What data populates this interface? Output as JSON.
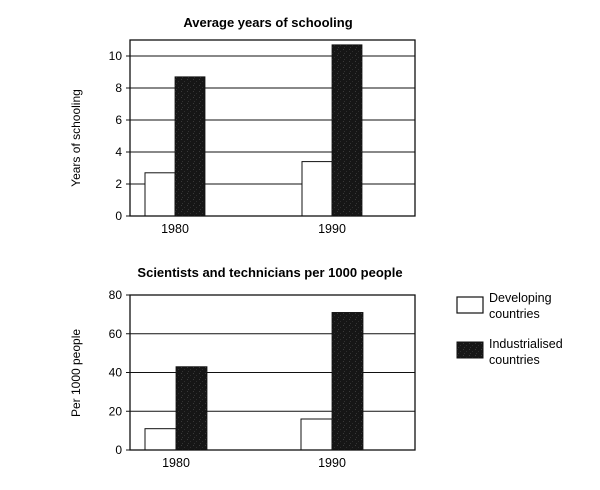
{
  "colors": {
    "developing_fill": "#ffffff",
    "industrialised_fill": "#141414",
    "axis": "#111111",
    "grid": "#111111"
  },
  "legend": {
    "placement": "right",
    "items": [
      {
        "label_lines": [
          "Developing",
          "countries"
        ],
        "swatch": "developing"
      },
      {
        "label_lines": [
          "Industrialised",
          "countries"
        ],
        "swatch": "industrialised"
      }
    ]
  },
  "chart_data": [
    {
      "type": "bar",
      "title": "Average years of schooling",
      "xlabel": "",
      "ylabel": "Years of schooling",
      "categories": [
        "1980",
        "1990"
      ],
      "series": [
        {
          "name": "Developing countries",
          "values": [
            2.7,
            3.4
          ]
        },
        {
          "name": "Industrialised countries",
          "values": [
            8.7,
            10.7
          ]
        }
      ],
      "ylim": [
        0,
        11
      ],
      "yticks": [
        0,
        2,
        4,
        6,
        8,
        10
      ],
      "grid": true,
      "legend": "right"
    },
    {
      "type": "bar",
      "title": "Scientists and technicians per 1000 people",
      "xlabel": "",
      "ylabel": "Per 1000 people",
      "categories": [
        "1980",
        "1990"
      ],
      "series": [
        {
          "name": "Developing countries",
          "values": [
            11,
            16
          ]
        },
        {
          "name": "Industrialised countries",
          "values": [
            43,
            71
          ]
        }
      ],
      "ylim": [
        0,
        80
      ],
      "yticks": [
        0,
        20,
        40,
        60,
        80
      ],
      "grid": true,
      "legend": "right"
    }
  ]
}
